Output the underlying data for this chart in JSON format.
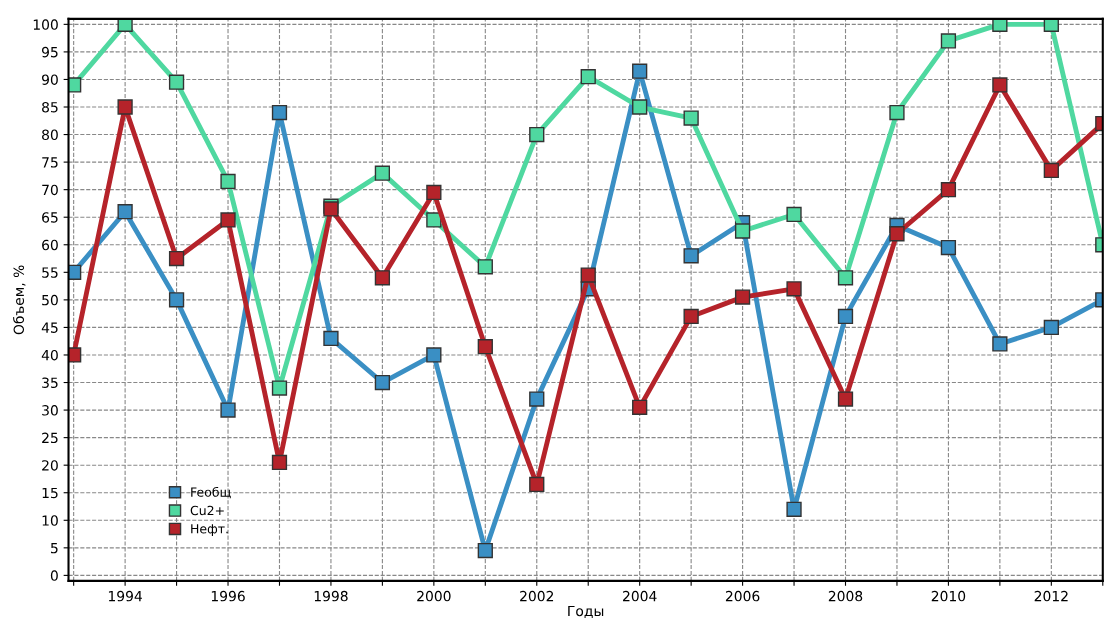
{
  "chart_data": {
    "type": "line",
    "xlabel": "Годы",
    "ylabel": "Объем, %",
    "x": [
      1993,
      1994,
      1995,
      1996,
      1997,
      1998,
      1999,
      2000,
      2001,
      2002,
      2003,
      2004,
      2005,
      2006,
      2007,
      2008,
      2009,
      2010,
      2011,
      2012,
      2013
    ],
    "series": [
      {
        "name": "Feобщ",
        "color": "#3a8fc4",
        "values": [
          55,
          66,
          50,
          30,
          84,
          43,
          35,
          40,
          4.5,
          32,
          52,
          91.5,
          58,
          64,
          12,
          47,
          63.5,
          59.5,
          42,
          45,
          50
        ]
      },
      {
        "name": "Cu2+",
        "color": "#4fd8a0",
        "values": [
          89,
          100,
          89.5,
          71.5,
          34,
          67,
          73,
          64.5,
          56,
          80,
          90.5,
          85,
          83,
          62.5,
          65.5,
          54,
          84,
          97,
          100,
          100,
          60
        ]
      },
      {
        "name": "Нефт.",
        "color": "#b5232a",
        "values": [
          40,
          85,
          57.5,
          64.5,
          20.5,
          66.5,
          54,
          69.5,
          41.5,
          16.5,
          54.5,
          30.5,
          47,
          50.5,
          52,
          32,
          62,
          70,
          89,
          73.5,
          82
        ]
      }
    ],
    "xlim": [
      1992.9,
      2013
    ],
    "xticks": [
      {
        "value": 1993,
        "label": null
      },
      1994,
      {
        "value": 1995,
        "label": null
      },
      1996,
      {
        "value": 1997,
        "label": null
      },
      1998,
      {
        "value": 1999,
        "label": null
      },
      2000,
      {
        "value": 2001,
        "label": null
      },
      2002,
      {
        "value": 2003,
        "label": null
      },
      2004,
      {
        "value": 2005,
        "label": null
      },
      2006,
      {
        "value": 2007,
        "label": null
      },
      2008,
      {
        "value": 2009,
        "label": null
      },
      2010,
      {
        "value": 2011,
        "label": null
      },
      2012,
      {
        "value": 2013,
        "label": null
      }
    ],
    "ylim": [
      -1,
      101
    ],
    "yticks": [
      0,
      5,
      10,
      15,
      20,
      25,
      30,
      35,
      40,
      45,
      50,
      55,
      60,
      65,
      70,
      75,
      80,
      85,
      90,
      95,
      100
    ],
    "grid": true,
    "legend": "bottom left",
    "marker": "square",
    "line_style": "solid"
  }
}
